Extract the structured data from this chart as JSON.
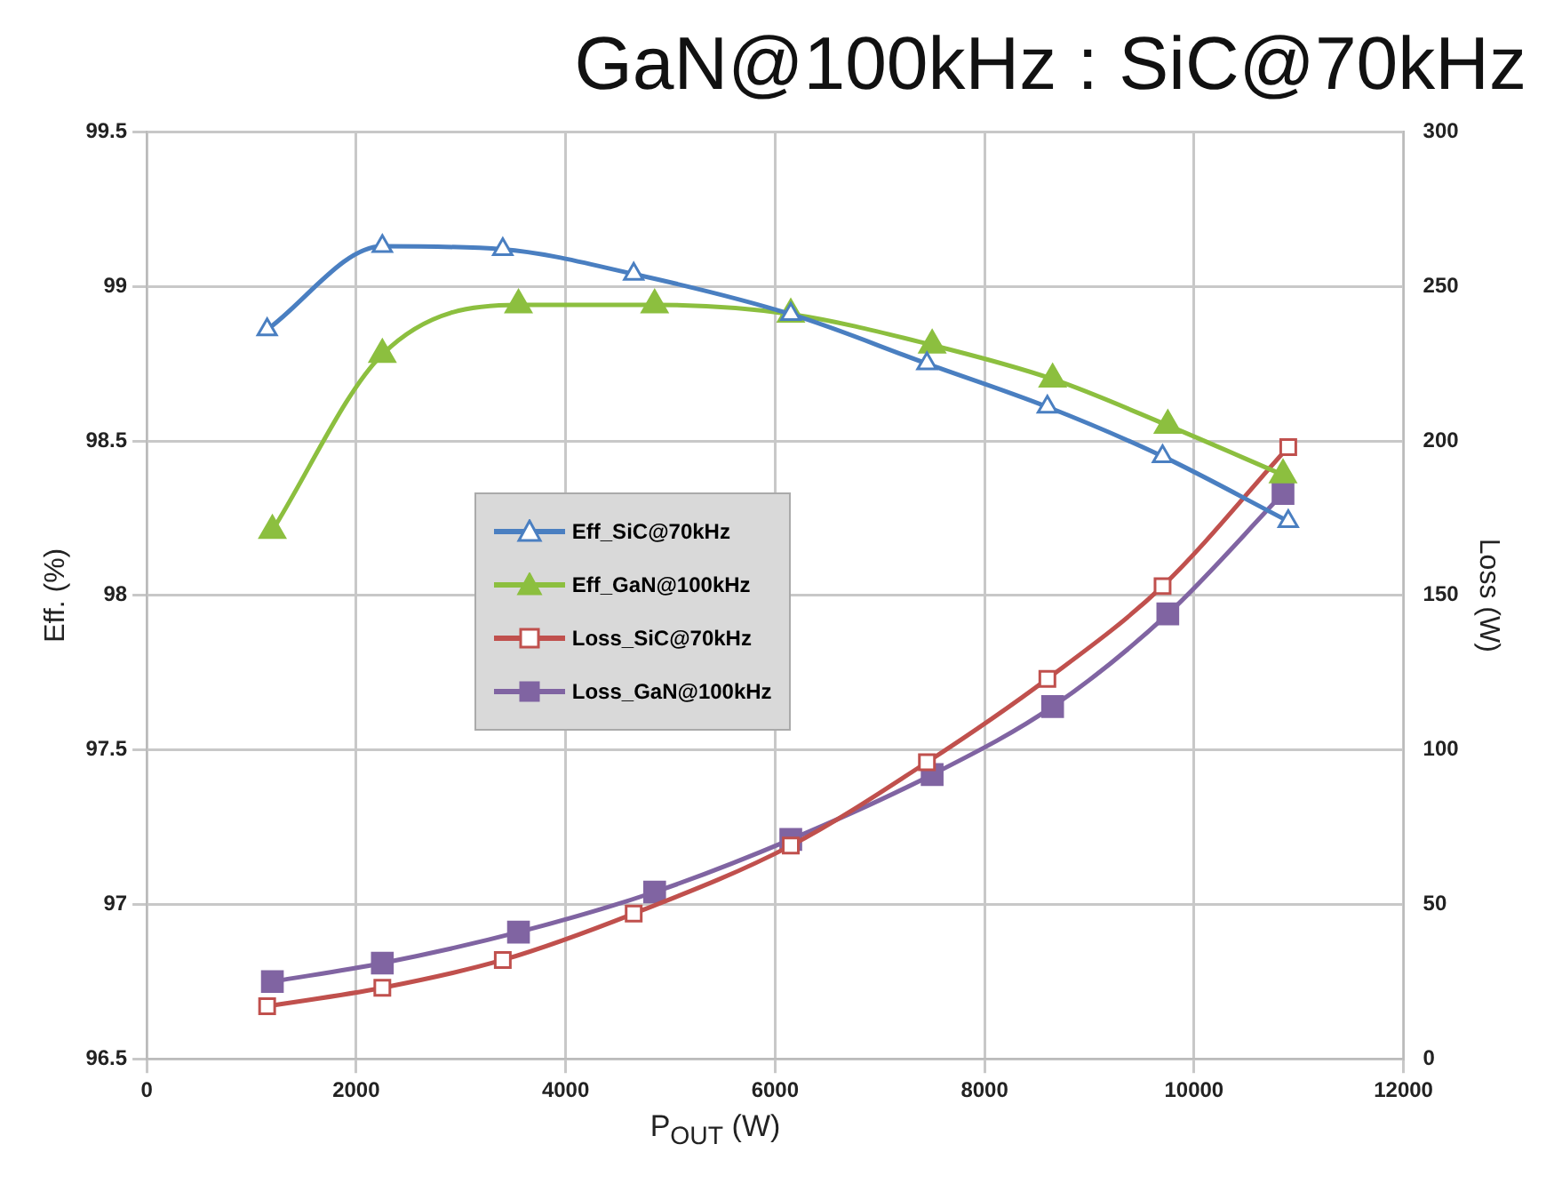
{
  "chart_data": {
    "type": "line",
    "title": "GaN@100kHz : SiC@70kHz",
    "xlabel": "P$_{OUT}$ (W)",
    "ylabel": "Eff. (%)",
    "y2label": "Loss (W)",
    "series": [
      {
        "name": "Eff_SiC@70kHz",
        "color": "#4a7fc1",
        "marker": "triangle",
        "x": [
          1150,
          2250,
          3400,
          4650,
          6150,
          7450,
          8600,
          9700,
          10900
        ],
        "values": [
          98.86,
          99.13,
          99.12,
          99.04,
          98.91,
          98.75,
          98.61,
          98.45,
          98.24
        ]
      },
      {
        "name": "Eff_GaN@100kHz",
        "color": "#8cbf3f",
        "marker": "triangle",
        "x": [
          1200,
          2250,
          3550,
          4850,
          6150,
          7500,
          8650,
          9750,
          10850
        ],
        "values": [
          98.21,
          98.78,
          98.94,
          98.94,
          98.91,
          98.81,
          98.7,
          98.55,
          98.39
        ]
      },
      {
        "name": "Loss_SiC@70kHz",
        "color": "#c0504d",
        "marker": "square",
        "axis": "y2",
        "x": [
          1150,
          2250,
          3400,
          4650,
          6150,
          7450,
          8600,
          9700,
          10900
        ],
        "values": [
          17,
          23,
          32,
          47,
          69,
          96,
          123,
          153,
          198
        ]
      },
      {
        "name": "Loss_GaN@100kHz",
        "color": "#8064a2",
        "marker": "square",
        "axis": "y2",
        "x": [
          1200,
          2250,
          3550,
          4850,
          6150,
          7500,
          8650,
          9750,
          10850
        ],
        "values": [
          25,
          31,
          41,
          54,
          71,
          92,
          114,
          144,
          183
        ]
      }
    ],
    "xlim": [
      0,
      12000
    ],
    "xticks": [
      0,
      2000,
      4000,
      6000,
      8000,
      10000,
      12000
    ],
    "ylim": [
      96.5,
      99.5
    ],
    "yticks": [
      96.5,
      97,
      97.5,
      98,
      98.5,
      99,
      99.5
    ],
    "y2lim": [
      0,
      300
    ],
    "y2ticks": [
      0,
      50,
      100,
      150,
      200,
      250,
      300
    ],
    "grid": true,
    "legend": "center",
    "line_style": "solid"
  }
}
